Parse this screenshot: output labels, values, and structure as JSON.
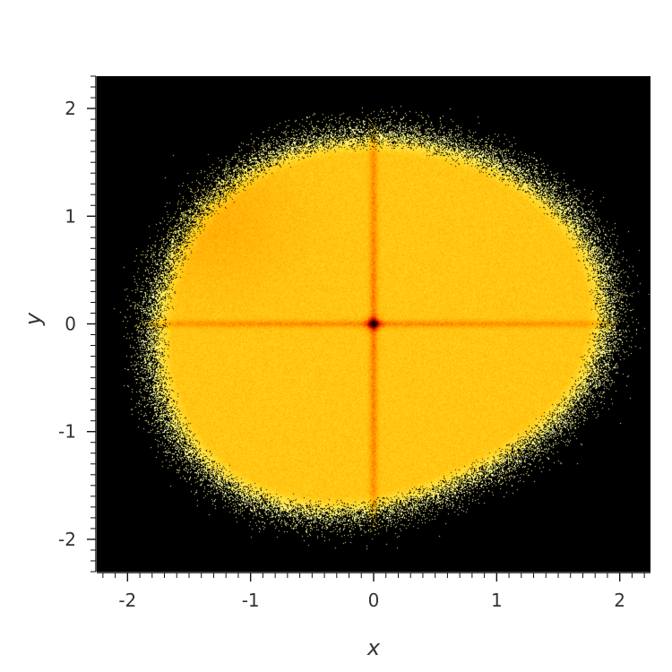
{
  "chart_data": {
    "type": "heatmap",
    "title": "",
    "xlabel": "x",
    "ylabel": "y",
    "xlim": [
      -2.25,
      2.25
    ],
    "ylim": [
      -2.3,
      2.3
    ],
    "x_ticks": [
      -2,
      -1,
      0,
      1,
      2
    ],
    "y_ticks": [
      -2,
      -1,
      0,
      1,
      2
    ],
    "x_tick_labels": [
      "-2",
      "-1",
      "0",
      "1",
      "2"
    ],
    "y_tick_labels": [
      "-2",
      "-1",
      "0",
      "1",
      "2"
    ],
    "grid": false,
    "colormap": [
      "#000000",
      "#8b0000",
      "#ff3c00",
      "#ffa500",
      "#ffd21a",
      "#ffff8c",
      "#ffffff"
    ],
    "background_color": "#000000",
    "density_description_points": {
      "peak": {
        "x": 0.0,
        "y": 0.0
      },
      "cross_lines": [
        {
          "axis": "x",
          "value": 0.0
        },
        {
          "axis": "y",
          "value": 0.0
        }
      ],
      "blob_radius_approx": 1.85
    }
  }
}
